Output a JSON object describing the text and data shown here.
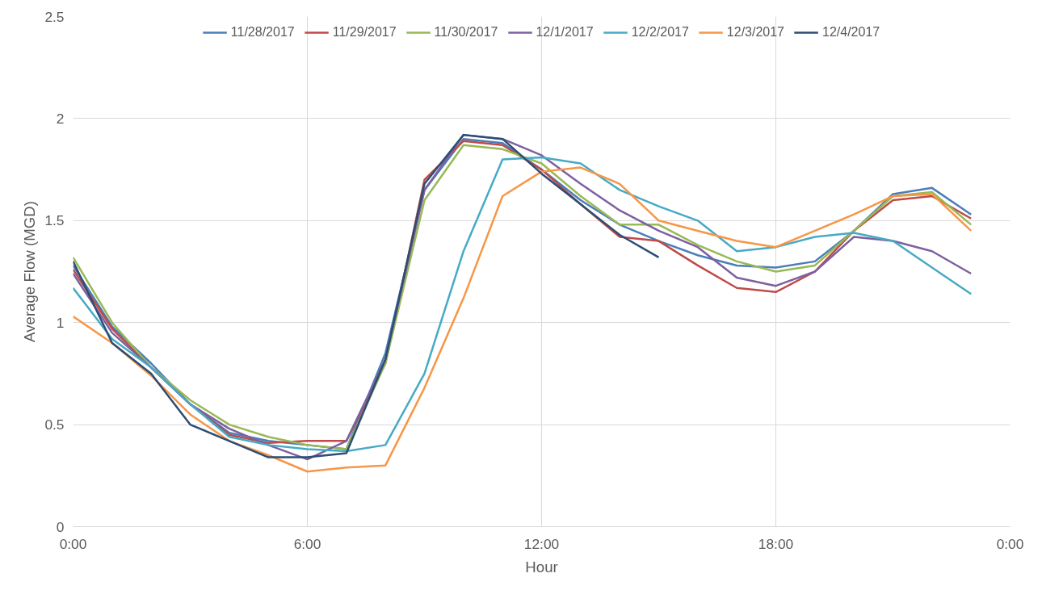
{
  "chart_data": {
    "type": "line",
    "xlabel": "Hour",
    "ylabel": "Average Flow (MGD)",
    "x": [
      0,
      1,
      2,
      3,
      4,
      5,
      6,
      7,
      8,
      9,
      10,
      11,
      12,
      13,
      14,
      15,
      16,
      17,
      18,
      19,
      20,
      21,
      22,
      23
    ],
    "xlim": [
      0,
      24
    ],
    "xticks": [
      {
        "value": 0,
        "label": "0:00"
      },
      {
        "value": 6,
        "label": "6:00"
      },
      {
        "value": 12,
        "label": "12:00"
      },
      {
        "value": 18,
        "label": "18:00"
      },
      {
        "value": 24,
        "label": "0:00"
      }
    ],
    "ylim": [
      0,
      2.5
    ],
    "yticks": [
      0,
      0.5,
      1,
      1.5,
      2,
      2.5
    ],
    "grid": true,
    "legend": "top",
    "marker": "none",
    "line_style": "solid",
    "series": [
      {
        "name": "11/28/2017",
        "color": "#4a7ebb",
        "values": [
          1.28,
          0.98,
          0.8,
          0.6,
          0.46,
          0.42,
          0.4,
          0.38,
          0.85,
          1.65,
          1.9,
          1.88,
          1.75,
          1.6,
          1.48,
          1.4,
          1.33,
          1.28,
          1.27,
          1.3,
          1.45,
          1.63,
          1.66,
          1.53
        ]
      },
      {
        "name": "11/29/2017",
        "color": "#be4b48",
        "values": [
          1.26,
          0.97,
          0.78,
          0.6,
          0.45,
          0.41,
          0.42,
          0.42,
          0.8,
          1.7,
          1.89,
          1.87,
          1.75,
          1.58,
          1.42,
          1.4,
          1.28,
          1.17,
          1.15,
          1.25,
          1.45,
          1.6,
          1.62,
          1.51
        ]
      },
      {
        "name": "11/30/2017",
        "color": "#98b954",
        "values": [
          1.32,
          1.0,
          0.78,
          0.62,
          0.5,
          0.44,
          0.4,
          0.38,
          0.8,
          1.6,
          1.87,
          1.85,
          1.78,
          1.62,
          1.48,
          1.48,
          1.38,
          1.3,
          1.25,
          1.28,
          1.45,
          1.62,
          1.64,
          1.48
        ]
      },
      {
        "name": "12/1/2017",
        "color": "#7d60a0",
        "values": [
          1.24,
          0.95,
          0.78,
          0.6,
          0.48,
          0.4,
          0.33,
          0.42,
          0.82,
          1.65,
          1.92,
          1.9,
          1.82,
          1.68,
          1.55,
          1.45,
          1.37,
          1.22,
          1.18,
          1.25,
          1.42,
          1.4,
          1.35,
          1.24
        ]
      },
      {
        "name": "12/2/2017",
        "color": "#46aac5",
        "values": [
          1.17,
          0.92,
          0.78,
          0.6,
          0.44,
          0.4,
          0.38,
          0.37,
          0.4,
          0.75,
          1.35,
          1.8,
          1.81,
          1.78,
          1.65,
          1.57,
          1.5,
          1.35,
          1.37,
          1.42,
          1.44,
          1.4,
          1.27,
          1.14
        ]
      },
      {
        "name": "12/3/2017",
        "color": "#f79646",
        "values": [
          1.03,
          0.9,
          0.74,
          0.55,
          0.42,
          0.35,
          0.27,
          0.29,
          0.3,
          0.68,
          1.12,
          1.62,
          1.74,
          1.76,
          1.68,
          1.5,
          1.45,
          1.4,
          1.37,
          1.45,
          1.53,
          1.62,
          1.63,
          1.45
        ]
      },
      {
        "name": "12/4/2017",
        "color": "#2c4d75",
        "values": [
          1.3,
          0.9,
          0.75,
          0.5,
          0.42,
          0.34,
          0.34,
          0.36,
          0.82,
          1.68,
          1.92,
          1.9,
          1.73,
          1.58,
          1.43,
          1.32,
          null,
          null,
          null,
          null,
          null,
          null,
          null,
          null
        ]
      }
    ]
  }
}
